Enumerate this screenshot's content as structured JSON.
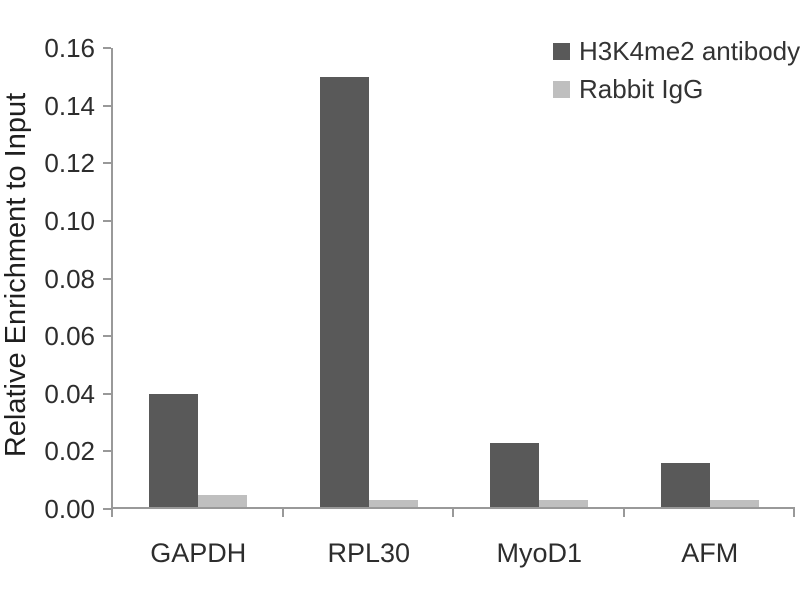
{
  "chart_data": {
    "type": "bar",
    "title": "",
    "ylabel": "Relative Enrichment to Input",
    "xlabel": "",
    "ylim": [
      0,
      0.16
    ],
    "ytick_step": 0.02,
    "yticks": [
      "0.00",
      "0.02",
      "0.04",
      "0.06",
      "0.08",
      "0.10",
      "0.12",
      "0.14",
      "0.16"
    ],
    "categories": [
      "GAPDH",
      "RPL30",
      "MyoD1",
      "AFM"
    ],
    "series": [
      {
        "name": "H3K4me2 antibody",
        "color": "#595959",
        "values": [
          0.04,
          0.15,
          0.023,
          0.016
        ]
      },
      {
        "name": "Rabbit IgG",
        "color": "#bfbfbf",
        "values": [
          0.005,
          0.003,
          0.003,
          0.003
        ]
      }
    ],
    "legend_position": "top-right",
    "grid": false,
    "axis_color": "#999999",
    "background_color": "#ffffff"
  }
}
